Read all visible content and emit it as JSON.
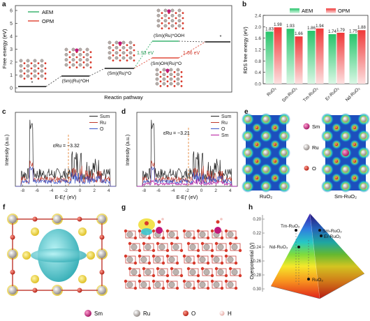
{
  "panels": {
    "a": {
      "label": "a",
      "ylabel": "Free energy (eV)",
      "xlabel": "Reactin pathway",
      "legend": [
        {
          "name": "AEM",
          "color": "#3cb371"
        },
        {
          "name": "OPM",
          "color": "#e04a3a"
        }
      ],
      "yticks": [
        "0",
        "1",
        "2",
        "3",
        "4",
        "5",
        "6"
      ],
      "states": [
        "*",
        "(Sm)(Ru)*OH",
        "(Sm)(Ru)*O",
        "(Sm)(Ru)*OOH",
        "(Sm)OH(Ru)*O",
        "*"
      ],
      "annotations": [
        "1.93 eV",
        "1.66 eV"
      ]
    },
    "b": {
      "label": "b",
      "ylabel": "RDS free energy (eV)",
      "legend": [
        {
          "name": "AEM",
          "color": "#2ecc71"
        },
        {
          "name": "OPM",
          "color": "#ee3b3b"
        }
      ],
      "yticks": [
        "0.0",
        "0.4",
        "0.8",
        "1.2",
        "1.6",
        "2.0",
        "2.4"
      ],
      "categories": [
        "RuO₂",
        "Sm-RuO₂",
        "Tm-RuO₂",
        "Er-RuO₂",
        "Nd-RuO₂"
      ],
      "aem_labels": [
        "1.83",
        "1.93",
        "1.86",
        "1.74",
        "1.75"
      ],
      "opm_labels": [
        "1.98",
        "1.66",
        "1.94",
        "1.79",
        "1.88"
      ]
    },
    "c": {
      "label": "c",
      "ylabel": "Intensity (a.u.)",
      "xlabel": "E-Eƒ (eV)",
      "xticks": [
        "-8",
        "-6",
        "-4",
        "-2",
        "0",
        "2",
        "4"
      ],
      "legend": [
        {
          "name": "Sum",
          "color": "#222222"
        },
        {
          "name": "Ru",
          "color": "#c0392b"
        },
        {
          "name": "O",
          "color": "#3a55c8"
        }
      ],
      "annotation": "εRu = −3.32"
    },
    "d": {
      "label": "d",
      "ylabel": "Intensity (a.u.)",
      "xlabel": "E-Eƒ (eV)",
      "xticks": [
        "-8",
        "-6",
        "-4",
        "-2",
        "0",
        "2",
        "4"
      ],
      "legend": [
        {
          "name": "Sum",
          "color": "#222222"
        },
        {
          "name": "Ru",
          "color": "#c0392b"
        },
        {
          "name": "O",
          "color": "#3a55c8"
        },
        {
          "name": "Sm",
          "color": "#b5179e"
        }
      ],
      "annotation": "εRu = −3.21"
    },
    "e": {
      "label": "e",
      "legend": [
        {
          "name": "Sm",
          "color": "#c2187a"
        },
        {
          "name": "Ru",
          "color": "#b8b0ad"
        },
        {
          "name": "O",
          "color": "#d83a2c"
        }
      ],
      "captions": [
        "RuO₂",
        "Sm-RuO₂"
      ]
    },
    "f": {
      "label": "f"
    },
    "g": {
      "label": "g"
    },
    "h": {
      "label": "h",
      "ylabel": "Overpotential (V)",
      "yticks": [
        "0.20",
        "0.22",
        "0.24",
        "0.26",
        "0.28",
        "0.30"
      ],
      "points": [
        "Sm-RuO₂",
        "Tm-RuO₂",
        "Er-RuO₂",
        "Nd-RuO₂",
        "RuO₂"
      ]
    }
  },
  "footer_legend": [
    {
      "name": "Sm",
      "color": "#c2187a"
    },
    {
      "name": "Ru",
      "color": "#b8b0ad"
    },
    {
      "name": "O",
      "color": "#d83a2c"
    },
    {
      "name": "H",
      "color": "#f2c6c2"
    }
  ],
  "chart_data": [
    {
      "type": "bar",
      "categories": [
        "RuO₂",
        "Sm-RuO₂",
        "Tm-RuO₂",
        "Er-RuO₂",
        "Nd-RuO₂"
      ],
      "series": [
        {
          "name": "AEM",
          "values": [
            1.83,
            1.93,
            1.86,
            1.74,
            1.75
          ]
        },
        {
          "name": "OPM",
          "values": [
            1.98,
            1.66,
            1.94,
            1.79,
            1.88
          ]
        }
      ],
      "ylabel": "RDS free energy (eV)",
      "ylim": [
        0,
        2.4
      ]
    }
  ]
}
